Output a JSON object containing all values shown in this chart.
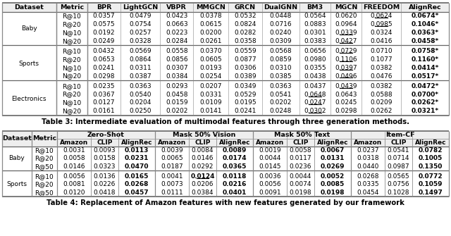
{
  "table3": {
    "title": "Table 3: Intermediate evaluation of multimodal features through three generation methods.",
    "col_headers": [
      "Dataset",
      "Metric",
      "BPR",
      "LightGCN",
      "VBPR",
      "MMGCN",
      "GRCN",
      "DualGNN",
      "BM3",
      "MGCN",
      "FREEDOM",
      "AlignRec"
    ],
    "group_names": [
      "Baby",
      "Sports",
      "Electronics"
    ],
    "group_row_starts": [
      0,
      4,
      8
    ],
    "group_row_ends": [
      3,
      7,
      11
    ],
    "row_labels": [
      "R@10",
      "R@20",
      "N@10",
      "N@20",
      "R@10",
      "R@20",
      "N@10",
      "N@20",
      "R@10",
      "R@20",
      "N@10",
      "N@20"
    ],
    "data": [
      [
        "0.0357",
        "0.0479",
        "0.0423",
        "0.0378",
        "0.0532",
        "0.0448",
        "0.0564",
        "0.0620",
        "0.0624",
        "0.0674*"
      ],
      [
        "0.0575",
        "0.0754",
        "0.0663",
        "0.0615",
        "0.0824",
        "0.0716",
        "0.0883",
        "0.0964",
        "0.0985",
        "0.1046*"
      ],
      [
        "0.0192",
        "0.0257",
        "0.0223",
        "0.0200",
        "0.0282",
        "0.0240",
        "0.0301",
        "0.0339",
        "0.0324",
        "0.0363*"
      ],
      [
        "0.0249",
        "0.0328",
        "0.0284",
        "0.0261",
        "0.0358",
        "0.0309",
        "0.0383",
        "0.0427",
        "0.0416",
        "0.0458*"
      ],
      [
        "0.0432",
        "0.0569",
        "0.0558",
        "0.0370",
        "0.0559",
        "0.0568",
        "0.0656",
        "0.0729",
        "0.0710",
        "0.0758*"
      ],
      [
        "0.0653",
        "0.0864",
        "0.0856",
        "0.0605",
        "0.0877",
        "0.0859",
        "0.0980",
        "0.1106",
        "0.1077",
        "0.1160*"
      ],
      [
        "0.0241",
        "0.0311",
        "0.0307",
        "0.0193",
        "0.0306",
        "0.0310",
        "0.0355",
        "0.0397",
        "0.0382",
        "0.0414*"
      ],
      [
        "0.0298",
        "0.0387",
        "0.0384",
        "0.0254",
        "0.0389",
        "0.0385",
        "0.0438",
        "0.0496",
        "0.0476",
        "0.0517*"
      ],
      [
        "0.0235",
        "0.0363",
        "0.0293",
        "0.0207",
        "0.0349",
        "0.0363",
        "0.0437",
        "0.0439",
        "0.0382",
        "0.0472*"
      ],
      [
        "0.0367",
        "0.0540",
        "0.0458",
        "0.0331",
        "0.0529",
        "0.0541",
        "0.0648",
        "0.0643",
        "0.0588",
        "0.0700*"
      ],
      [
        "0.0127",
        "0.0204",
        "0.0159",
        "0.0109",
        "0.0195",
        "0.0202",
        "0.0247",
        "0.0245",
        "0.0209",
        "0.0262*"
      ],
      [
        "0.0161",
        "0.0250",
        "0.0202",
        "0.0141",
        "0.0241",
        "0.0248",
        "0.0302",
        "0.0298",
        "0.0262",
        "0.0321*"
      ]
    ],
    "underline_cells": [
      [
        0,
        8
      ],
      [
        1,
        8
      ],
      [
        2,
        7
      ],
      [
        3,
        7
      ],
      [
        4,
        7
      ],
      [
        5,
        7
      ],
      [
        6,
        7
      ],
      [
        7,
        7
      ],
      [
        8,
        7
      ],
      [
        9,
        6
      ],
      [
        10,
        6
      ],
      [
        11,
        6
      ]
    ],
    "col_widths_raw": [
      52,
      30,
      32,
      38,
      32,
      34,
      32,
      36,
      30,
      30,
      38,
      46
    ]
  },
  "table4": {
    "title": "Table 4: Replacement of Amazon features with new features generated by our framework",
    "col_group_headers": [
      "Zero-Shot",
      "Mask 50% Vision",
      "Mask 50% Text",
      "Item-CF"
    ],
    "sub_col_headers": [
      "Amazon",
      "CLIP",
      "AlignRec"
    ],
    "group_names": [
      "Baby",
      "Sports"
    ],
    "group_row_starts": [
      0,
      3
    ],
    "group_row_ends": [
      2,
      5
    ],
    "row_labels": [
      "R@10",
      "R@20",
      "R@50",
      "R@10",
      "R@20",
      "R@50"
    ],
    "data": [
      [
        "0.0031",
        "0.0093",
        "0.0113",
        "0.0039",
        "0.0084",
        "0.0089",
        "0.0019",
        "0.0058",
        "0.0067",
        "0.0237",
        "0.0541",
        "0.0782"
      ],
      [
        "0.0058",
        "0.0158",
        "0.0231",
        "0.0065",
        "0.0146",
        "0.0174",
        "0.0044",
        "0.0117",
        "0.0131",
        "0.0318",
        "0.0714",
        "0.1005"
      ],
      [
        "0.0146",
        "0.0323",
        "0.0470",
        "0.0187",
        "0.0292",
        "0.0365",
        "0.0145",
        "0.0236",
        "0.0269",
        "0.0440",
        "0.0987",
        "0.1350"
      ],
      [
        "0.0056",
        "0.0136",
        "0.0165",
        "0.0041",
        "0.0124",
        "0.0118",
        "0.0036",
        "0.0044",
        "0.0052",
        "0.0268",
        "0.0565",
        "0.0772"
      ],
      [
        "0.0081",
        "0.0226",
        "0.0268",
        "0.0073",
        "0.0206",
        "0.0216",
        "0.0056",
        "0.0074",
        "0.0085",
        "0.0335",
        "0.0756",
        "0.1059"
      ],
      [
        "0.0120",
        "0.0418",
        "0.0457",
        "0.0111",
        "0.0384",
        "0.0401",
        "0.0091",
        "0.0198",
        "0.0198",
        "0.0454",
        "0.1028",
        "0.1497"
      ]
    ],
    "underline_cells": [
      [
        3,
        4
      ]
    ],
    "col_widths_raw": [
      32,
      28,
      37,
      30,
      40,
      37,
      30,
      40,
      37,
      30,
      40,
      37,
      30,
      40
    ]
  },
  "bg_color": "#ffffff",
  "line_color": "#888888",
  "text_color": "#000000",
  "header_bg": "#eeeeee",
  "font_size": 6.5,
  "header_font_size": 6.8,
  "title_font_size": 7.2
}
